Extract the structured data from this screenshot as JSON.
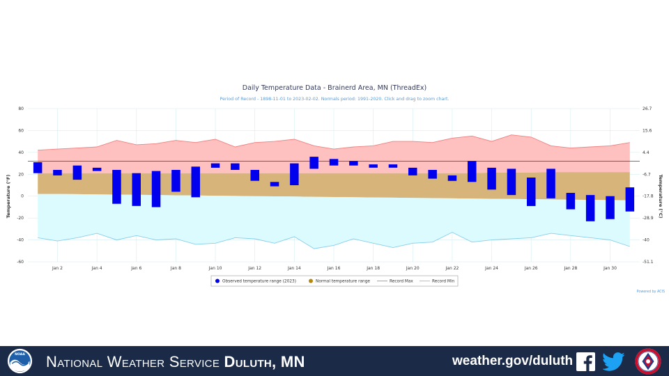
{
  "chart_data": {
    "type": "bar",
    "title": "Daily Temperature Data - Brainerd Area, MN (ThreadEx)",
    "subtitle": "Period of Record - 1898-11-01 to 2023-02-02. Normals period: 1991-2020. Click and drag to zoom chart.",
    "ylabel": "Temperature (°F)",
    "ylabel_right": "Temperature (°C)",
    "ylim": [
      -60,
      80
    ],
    "y_ticks": [
      "80",
      "60",
      "40",
      "20",
      "0",
      "-20",
      "-40",
      "-60"
    ],
    "y_ticks_right": [
      "26.7",
      "15.6",
      "4.4",
      "-6.7",
      "-17.8",
      "-28.9",
      "-40",
      "-51.1"
    ],
    "x_ticks": [
      "Jan 2",
      "Jan 4",
      "Jan 6",
      "Jan 8",
      "Jan 10",
      "Jan 12",
      "Jan 14",
      "Jan 16",
      "Jan 18",
      "Jan 20",
      "Jan 22",
      "Jan 24",
      "Jan 26",
      "Jan 28",
      "Jan 30"
    ],
    "grid": true,
    "freezing_line_f": 32,
    "days": [
      1,
      2,
      3,
      4,
      5,
      6,
      7,
      8,
      9,
      10,
      11,
      12,
      13,
      14,
      15,
      16,
      17,
      18,
      19,
      20,
      21,
      22,
      23,
      24,
      25,
      26,
      27,
      28,
      29,
      30,
      31
    ],
    "series": [
      {
        "name": "Observed temperature range (2023)",
        "color": "#0000ee",
        "low": [
          21,
          19,
          15,
          23,
          -7,
          -9,
          -10,
          4,
          -1,
          26,
          24,
          14,
          9,
          10,
          25,
          28,
          28,
          26,
          26,
          19,
          16,
          14,
          13,
          6,
          1,
          -9,
          -2,
          -12,
          -23,
          -21,
          -14
        ],
        "high": [
          31,
          24,
          28,
          26,
          24,
          21,
          23,
          24,
          27,
          30,
          30,
          24,
          13,
          30,
          36,
          34,
          32,
          29,
          29,
          26,
          24,
          19,
          32,
          26,
          25,
          17,
          25,
          3,
          1,
          0,
          8
        ]
      },
      {
        "name": "Normal temperature range",
        "color": "#b8860b",
        "low": [
          2,
          2,
          1.8,
          1.6,
          1.4,
          1.2,
          1,
          0.8,
          0.6,
          0.4,
          0.2,
          0,
          -0.2,
          -0.4,
          -0.6,
          -0.8,
          -1,
          -1.2,
          -1.4,
          -1.6,
          -1.8,
          -2,
          -2.2,
          -2.4,
          -2.6,
          -2.8,
          -3,
          -3.2,
          -3.4,
          -3.6,
          -3.8
        ],
        "high": [
          21,
          21,
          21,
          21,
          21,
          21,
          21,
          21,
          21,
          21,
          21,
          21,
          21,
          21,
          21,
          21,
          21,
          21,
          21,
          21,
          21,
          21,
          21,
          21.5,
          21.5,
          21.5,
          22,
          22,
          22,
          22,
          22
        ]
      },
      {
        "name": "Record Max",
        "color": "#f08080",
        "values": [
          42,
          43,
          44,
          45,
          51,
          47,
          48,
          51,
          49,
          52,
          45,
          49,
          50,
          52,
          46,
          43,
          45,
          46,
          50,
          50,
          49,
          53,
          55,
          50,
          56,
          54,
          46,
          44,
          45,
          46,
          49
        ]
      },
      {
        "name": "Record Min",
        "color": "#87ceeb",
        "values": [
          -38,
          -41,
          -38,
          -34,
          -40,
          -36,
          -40,
          -39,
          -44,
          -43,
          -38,
          -39,
          -43,
          -37,
          -48,
          -45,
          -39,
          -43,
          -47,
          -43,
          -42,
          -33,
          -42,
          -40,
          -39,
          -38,
          -34,
          -36,
          -38,
          -40,
          -46
        ]
      }
    ],
    "credit": "Powered by ACIS"
  },
  "footer": {
    "org_prefix": "National Weather Service",
    "office": "Duluth, MN",
    "website": "weather.gov/duluth",
    "noaa_logo_text": "NOAA"
  },
  "colors": {
    "footer_bg": "#1b2a47",
    "record_max_fill": "#ffc0c0",
    "normal_fill": "#d7b57a",
    "record_min_fill": "#dcfbff",
    "observed_bar": "#0000ee"
  }
}
